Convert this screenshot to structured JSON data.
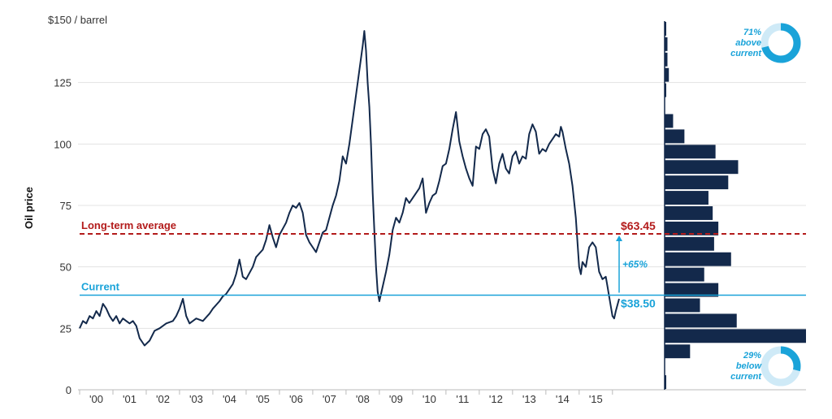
{
  "chart_data": {
    "type": "line",
    "title": "",
    "ylabel": "Oil price",
    "y_unit_label": "$150 / barrel",
    "ylim": [
      0,
      150
    ],
    "xlim": [
      2000.0,
      2016.2
    ],
    "yticks": [
      {
        "value": 0,
        "label": "0"
      },
      {
        "value": 25,
        "label": "25"
      },
      {
        "value": 50,
        "label": "50"
      },
      {
        "value": 75,
        "label": "75"
      },
      {
        "value": 100,
        "label": "100"
      },
      {
        "value": 125,
        "label": "125"
      }
    ],
    "xticks": [
      "'00",
      "'01",
      "'02",
      "'03",
      "'04",
      "'05",
      "'06",
      "'07",
      "'08",
      "'09",
      "'10",
      "'11",
      "'12",
      "'13",
      "'14",
      "'15"
    ],
    "series": [
      {
        "name": "Oil price",
        "color": "#13294b",
        "points": [
          [
            2000.0,
            25
          ],
          [
            2000.1,
            28
          ],
          [
            2000.2,
            27
          ],
          [
            2000.3,
            30
          ],
          [
            2000.4,
            29
          ],
          [
            2000.5,
            32
          ],
          [
            2000.6,
            30
          ],
          [
            2000.7,
            35
          ],
          [
            2000.8,
            33
          ],
          [
            2000.9,
            30
          ],
          [
            2001.0,
            28
          ],
          [
            2001.1,
            30
          ],
          [
            2001.2,
            27
          ],
          [
            2001.3,
            29
          ],
          [
            2001.4,
            28
          ],
          [
            2001.5,
            27
          ],
          [
            2001.6,
            28
          ],
          [
            2001.7,
            26
          ],
          [
            2001.8,
            21
          ],
          [
            2001.9,
            19
          ],
          [
            2001.95,
            18
          ],
          [
            2002.1,
            20
          ],
          [
            2002.25,
            24
          ],
          [
            2002.4,
            25
          ],
          [
            2002.6,
            27
          ],
          [
            2002.8,
            28
          ],
          [
            2002.9,
            30
          ],
          [
            2003.0,
            33
          ],
          [
            2003.1,
            37
          ],
          [
            2003.2,
            30
          ],
          [
            2003.3,
            27
          ],
          [
            2003.5,
            29
          ],
          [
            2003.7,
            28
          ],
          [
            2003.9,
            31
          ],
          [
            2004.0,
            33
          ],
          [
            2004.2,
            36
          ],
          [
            2004.3,
            38
          ],
          [
            2004.4,
            39
          ],
          [
            2004.5,
            41
          ],
          [
            2004.6,
            43
          ],
          [
            2004.7,
            47
          ],
          [
            2004.8,
            53
          ],
          [
            2004.9,
            46
          ],
          [
            2005.0,
            45
          ],
          [
            2005.2,
            50
          ],
          [
            2005.3,
            54
          ],
          [
            2005.5,
            57
          ],
          [
            2005.6,
            61
          ],
          [
            2005.7,
            67
          ],
          [
            2005.8,
            62
          ],
          [
            2005.9,
            58
          ],
          [
            2006.0,
            63
          ],
          [
            2006.2,
            68
          ],
          [
            2006.3,
            72
          ],
          [
            2006.4,
            75
          ],
          [
            2006.5,
            74
          ],
          [
            2006.6,
            76
          ],
          [
            2006.7,
            72
          ],
          [
            2006.8,
            63
          ],
          [
            2006.9,
            60
          ],
          [
            2007.0,
            58
          ],
          [
            2007.1,
            56
          ],
          [
            2007.3,
            64
          ],
          [
            2007.4,
            65
          ],
          [
            2007.5,
            70
          ],
          [
            2007.6,
            75
          ],
          [
            2007.7,
            79
          ],
          [
            2007.8,
            85
          ],
          [
            2007.9,
            95
          ],
          [
            2008.0,
            92
          ],
          [
            2008.1,
            100
          ],
          [
            2008.2,
            110
          ],
          [
            2008.3,
            120
          ],
          [
            2008.4,
            130
          ],
          [
            2008.5,
            140
          ],
          [
            2008.55,
            146
          ],
          [
            2008.6,
            138
          ],
          [
            2008.65,
            125
          ],
          [
            2008.7,
            115
          ],
          [
            2008.75,
            100
          ],
          [
            2008.8,
            80
          ],
          [
            2008.85,
            65
          ],
          [
            2008.9,
            50
          ],
          [
            2008.95,
            40
          ],
          [
            2009.0,
            36
          ],
          [
            2009.1,
            42
          ],
          [
            2009.2,
            48
          ],
          [
            2009.3,
            55
          ],
          [
            2009.4,
            65
          ],
          [
            2009.5,
            70
          ],
          [
            2009.6,
            68
          ],
          [
            2009.7,
            72
          ],
          [
            2009.8,
            78
          ],
          [
            2009.9,
            76
          ],
          [
            2010.0,
            78
          ],
          [
            2010.2,
            82
          ],
          [
            2010.3,
            86
          ],
          [
            2010.4,
            72
          ],
          [
            2010.5,
            76
          ],
          [
            2010.6,
            79
          ],
          [
            2010.7,
            80
          ],
          [
            2010.8,
            85
          ],
          [
            2010.9,
            91
          ],
          [
            2011.0,
            92
          ],
          [
            2011.1,
            98
          ],
          [
            2011.2,
            106
          ],
          [
            2011.3,
            113
          ],
          [
            2011.4,
            101
          ],
          [
            2011.5,
            95
          ],
          [
            2011.6,
            90
          ],
          [
            2011.7,
            86
          ],
          [
            2011.8,
            83
          ],
          [
            2011.9,
            99
          ],
          [
            2012.0,
            98
          ],
          [
            2012.1,
            104
          ],
          [
            2012.2,
            106
          ],
          [
            2012.3,
            103
          ],
          [
            2012.4,
            90
          ],
          [
            2012.5,
            84
          ],
          [
            2012.6,
            92
          ],
          [
            2012.7,
            96
          ],
          [
            2012.8,
            90
          ],
          [
            2012.9,
            88
          ],
          [
            2013.0,
            95
          ],
          [
            2013.1,
            97
          ],
          [
            2013.2,
            92
          ],
          [
            2013.3,
            95
          ],
          [
            2013.4,
            94
          ],
          [
            2013.5,
            104
          ],
          [
            2013.6,
            108
          ],
          [
            2013.7,
            105
          ],
          [
            2013.8,
            96
          ],
          [
            2013.9,
            98
          ],
          [
            2014.0,
            97
          ],
          [
            2014.1,
            100
          ],
          [
            2014.2,
            102
          ],
          [
            2014.3,
            104
          ],
          [
            2014.4,
            103
          ],
          [
            2014.45,
            107
          ],
          [
            2014.5,
            105
          ],
          [
            2014.6,
            98
          ],
          [
            2014.7,
            92
          ],
          [
            2014.8,
            83
          ],
          [
            2014.9,
            70
          ],
          [
            2015.0,
            50
          ],
          [
            2015.05,
            47
          ],
          [
            2015.1,
            52
          ],
          [
            2015.2,
            50
          ],
          [
            2015.3,
            58
          ],
          [
            2015.4,
            60
          ],
          [
            2015.5,
            58
          ],
          [
            2015.6,
            48
          ],
          [
            2015.7,
            45
          ],
          [
            2015.8,
            46
          ],
          [
            2015.85,
            42
          ],
          [
            2015.9,
            38
          ],
          [
            2016.0,
            30
          ],
          [
            2016.05,
            29
          ],
          [
            2016.1,
            32
          ],
          [
            2016.2,
            37
          ]
        ]
      }
    ],
    "reference_lines": [
      {
        "name": "Long-term average",
        "label": "Long-term average",
        "value": 63.45,
        "value_label": "$63.45",
        "color": "#b31b1b",
        "style": "dashed"
      },
      {
        "name": "Current",
        "label": "Current",
        "value": 38.5,
        "value_label": "$38.50",
        "color": "#1aa3d9",
        "style": "solid"
      }
    ],
    "change_annotation": {
      "from": 38.5,
      "to": 63.45,
      "label": "+65%",
      "color": "#1aa3d9"
    },
    "histogram": {
      "bin_width": 6.25,
      "bins": [
        {
          "from": 0,
          "to": 6.25,
          "count": 1
        },
        {
          "from": 6.25,
          "to": 12.5,
          "count": 0
        },
        {
          "from": 12.5,
          "to": 18.75,
          "count": 18
        },
        {
          "from": 18.75,
          "to": 25,
          "count": 100
        },
        {
          "from": 25,
          "to": 31.25,
          "count": 51
        },
        {
          "from": 31.25,
          "to": 37.5,
          "count": 25
        },
        {
          "from": 37.5,
          "to": 43.75,
          "count": 38
        },
        {
          "from": 43.75,
          "to": 50,
          "count": 28
        },
        {
          "from": 50,
          "to": 56.25,
          "count": 47
        },
        {
          "from": 56.25,
          "to": 62.5,
          "count": 35
        },
        {
          "from": 62.5,
          "to": 68.75,
          "count": 38
        },
        {
          "from": 68.75,
          "to": 75,
          "count": 34
        },
        {
          "from": 75,
          "to": 81.25,
          "count": 31
        },
        {
          "from": 81.25,
          "to": 87.5,
          "count": 45
        },
        {
          "from": 87.5,
          "to": 93.75,
          "count": 52
        },
        {
          "from": 93.75,
          "to": 100,
          "count": 36
        },
        {
          "from": 100,
          "to": 106.25,
          "count": 14
        },
        {
          "from": 106.25,
          "to": 112.5,
          "count": 6
        },
        {
          "from": 112.5,
          "to": 118.75,
          "count": 0
        },
        {
          "from": 118.75,
          "to": 125,
          "count": 1
        },
        {
          "from": 125,
          "to": 131.25,
          "count": 3
        },
        {
          "from": 131.25,
          "to": 137.5,
          "count": 2
        },
        {
          "from": 137.5,
          "to": 143.75,
          "count": 2
        },
        {
          "from": 143.75,
          "to": 150,
          "count": 1
        }
      ],
      "color": "#13294b"
    },
    "donuts": [
      {
        "name": "above",
        "percent": 71,
        "line1": "71%",
        "line2": "above",
        "line3": "current",
        "color": "#1aa3d9"
      },
      {
        "name": "below",
        "percent": 29,
        "line1": "29%",
        "line2": "below",
        "line3": "current",
        "color": "#1aa3d9"
      }
    ]
  }
}
